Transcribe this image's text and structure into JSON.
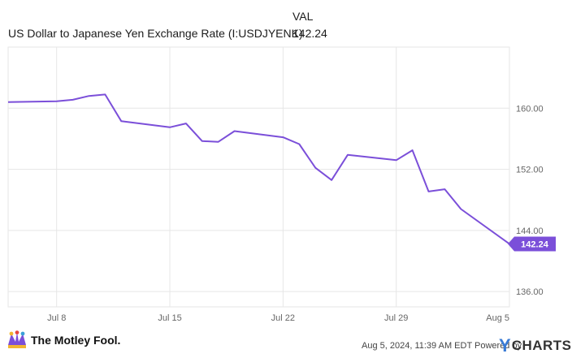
{
  "header": {
    "column_label": "VAL",
    "series_name": "US Dollar to Japanese Yen Exchange Rate (I:USDJYENK)",
    "series_value": "142.24"
  },
  "colors": {
    "line": "#7b4fd9",
    "badge_bg": "#7b4fd9",
    "grid": "#e6e6e6",
    "axis_text": "#666666",
    "ycharts_blue": "#3a7bd5"
  },
  "chart_data": {
    "type": "line",
    "title": "US Dollar to Japanese Yen Exchange Rate (I:USDJYENK)",
    "ylim": [
      134,
      168
    ],
    "yticks": [
      136,
      144,
      152,
      160
    ],
    "ytick_labels": [
      "136.00",
      "144.00",
      "152.00",
      "160.00"
    ],
    "xticks": [
      "2024-07-08",
      "2024-07-15",
      "2024-07-22",
      "2024-07-29",
      "2024-08-05"
    ],
    "xtick_labels": [
      "Jul 8",
      "Jul 15",
      "Jul 22",
      "Jul 29",
      "Aug 5"
    ],
    "xlim": [
      "2024-07-05",
      "2024-08-05"
    ],
    "grid": true,
    "last_value_label": "142.24",
    "series": [
      {
        "name": "US Dollar to Japanese Yen Exchange Rate (I:USDJYENK)",
        "x": [
          "2024-07-05",
          "2024-07-08",
          "2024-07-09",
          "2024-07-10",
          "2024-07-11",
          "2024-07-12",
          "2024-07-15",
          "2024-07-16",
          "2024-07-17",
          "2024-07-18",
          "2024-07-19",
          "2024-07-22",
          "2024-07-23",
          "2024-07-24",
          "2024-07-25",
          "2024-07-26",
          "2024-07-29",
          "2024-07-30",
          "2024-07-31",
          "2024-08-01",
          "2024-08-02",
          "2024-08-05"
        ],
        "values": [
          160.8,
          160.9,
          161.1,
          161.6,
          161.8,
          158.3,
          157.5,
          158.0,
          155.7,
          155.6,
          157.0,
          156.2,
          155.3,
          152.2,
          150.6,
          153.9,
          153.2,
          154.5,
          149.1,
          149.4,
          146.8,
          142.24
        ]
      }
    ]
  },
  "footer": {
    "brand": "The Motley Fool.",
    "timestamp": "Aug 5, 2024, 11:39 AM EDT Powered by",
    "ycharts_y": "Y",
    "ycharts_word": "CHARTS"
  }
}
